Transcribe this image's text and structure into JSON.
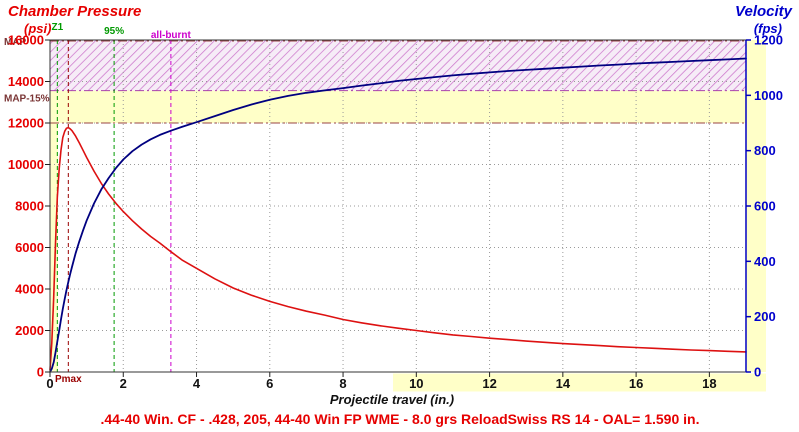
{
  "chart_data": {
    "type": "line",
    "caption": ".44-40 Win. CF - .428, 205, 44-40 Win FP WME - 8.0 grs ReloadSwiss RS 14 - OAL= 1.590 in.",
    "xlabel": "Projectile travel (in.)",
    "x_axis": {
      "min": 0,
      "max": 19,
      "ticks": [
        0,
        2,
        4,
        6,
        8,
        10,
        12,
        14,
        16,
        18
      ]
    },
    "pressure_axis": {
      "title": "Chamber Pressure",
      "unit": "(psi)",
      "min": 0,
      "max": 16000,
      "ticks": [
        0,
        2000,
        4000,
        6000,
        8000,
        10000,
        12000,
        14000,
        16000
      ],
      "color": "#e60000"
    },
    "velocity_axis": {
      "title": "Velocity",
      "unit": "(fps)",
      "min": 0,
      "max": 1200,
      "ticks": [
        0,
        200,
        400,
        600,
        800,
        1000,
        1200
      ],
      "color": "#0000cc"
    },
    "band_color": "#ffffc8",
    "grid": true,
    "zones": [
      {
        "name": "overpressure-hatched",
        "style": "hatched",
        "color": "#cc77cc",
        "from_psi": 13560,
        "to_psi": 16000
      },
      {
        "name": "map-warning-band",
        "style": "solid",
        "color": "#ffffc8",
        "from_psi": 12000,
        "to_psi": 13560
      }
    ],
    "hlines": [
      {
        "label": "MAP",
        "psi": 15954,
        "label_dy": 4,
        "line": true,
        "color": "#994444"
      },
      {
        "label": "MAP-15%",
        "psi": 13560,
        "label_dy": 11,
        "line": true,
        "color": "#aa44aa"
      },
      {
        "label": "",
        "psi": 12000,
        "label_dy": 0,
        "line": true,
        "color": "#994444"
      }
    ],
    "markers": [
      {
        "label": "Z1",
        "x": 0.2,
        "color": "#009900",
        "label_pos": "top",
        "label_row": 0
      },
      {
        "label": "Pmax",
        "x": 0.5,
        "color": "#990000",
        "label_pos": "bottom",
        "label_row": 0
      },
      {
        "label": "95%",
        "x": 1.75,
        "color": "#009900",
        "label_pos": "top",
        "label_row": 1
      },
      {
        "label": "all-burnt",
        "x": 3.3,
        "color": "#cc00cc",
        "label_pos": "top",
        "label_row": 2
      }
    ],
    "series": [
      {
        "name": "chamber-pressure",
        "axis": "pressure",
        "color": "#dd1111",
        "width": 1.6,
        "points": [
          [
            0,
            100
          ],
          [
            0.05,
            1400
          ],
          [
            0.1,
            3600
          ],
          [
            0.15,
            6200
          ],
          [
            0.2,
            8400
          ],
          [
            0.25,
            9800
          ],
          [
            0.3,
            10700
          ],
          [
            0.35,
            11300
          ],
          [
            0.4,
            11600
          ],
          [
            0.45,
            11750
          ],
          [
            0.5,
            11780
          ],
          [
            0.55,
            11720
          ],
          [
            0.6,
            11630
          ],
          [
            0.7,
            11370
          ],
          [
            0.8,
            11040
          ],
          [
            0.9,
            10690
          ],
          [
            1.0,
            10340
          ],
          [
            1.2,
            9680
          ],
          [
            1.4,
            9090
          ],
          [
            1.6,
            8580
          ],
          [
            1.8,
            8130
          ],
          [
            2.0,
            7730
          ],
          [
            2.25,
            7290
          ],
          [
            2.5,
            6890
          ],
          [
            2.75,
            6530
          ],
          [
            3.0,
            6210
          ],
          [
            3.3,
            5800
          ],
          [
            3.6,
            5400
          ],
          [
            4.0,
            5000
          ],
          [
            4.5,
            4490
          ],
          [
            5.0,
            4050
          ],
          [
            5.5,
            3700
          ],
          [
            6.0,
            3400
          ],
          [
            6.5,
            3150
          ],
          [
            7.0,
            2930
          ],
          [
            7.5,
            2740
          ],
          [
            8.0,
            2530
          ],
          [
            8.5,
            2370
          ],
          [
            9.0,
            2230
          ],
          [
            9.5,
            2110
          ],
          [
            10.0,
            2000
          ],
          [
            10.5,
            1890
          ],
          [
            11.0,
            1790
          ],
          [
            11.5,
            1710
          ],
          [
            12.0,
            1630
          ],
          [
            12.5,
            1560
          ],
          [
            13.0,
            1490
          ],
          [
            13.5,
            1430
          ],
          [
            14.0,
            1370
          ],
          [
            14.5,
            1320
          ],
          [
            15.0,
            1270
          ],
          [
            15.5,
            1220
          ],
          [
            16.0,
            1180
          ],
          [
            16.5,
            1140
          ],
          [
            17.0,
            1100
          ],
          [
            17.5,
            1060
          ],
          [
            18.0,
            1030
          ],
          [
            18.5,
            1000
          ],
          [
            19.0,
            970
          ]
        ]
      },
      {
        "name": "velocity",
        "axis": "velocity",
        "color": "#000080",
        "width": 1.8,
        "points": [
          [
            0,
            0
          ],
          [
            0.05,
            12
          ],
          [
            0.1,
            35
          ],
          [
            0.15,
            70
          ],
          [
            0.2,
            110
          ],
          [
            0.25,
            150
          ],
          [
            0.3,
            190
          ],
          [
            0.35,
            228
          ],
          [
            0.4,
            264
          ],
          [
            0.45,
            296
          ],
          [
            0.5,
            325
          ],
          [
            0.55,
            353
          ],
          [
            0.6,
            380
          ],
          [
            0.7,
            429
          ],
          [
            0.8,
            472
          ],
          [
            0.9,
            511
          ],
          [
            1.0,
            547
          ],
          [
            1.2,
            609
          ],
          [
            1.4,
            660
          ],
          [
            1.6,
            701
          ],
          [
            1.8,
            737
          ],
          [
            2.0,
            768
          ],
          [
            2.25,
            798
          ],
          [
            2.5,
            822
          ],
          [
            2.75,
            841
          ],
          [
            3.0,
            857
          ],
          [
            3.3,
            872
          ],
          [
            3.6,
            886
          ],
          [
            4.0,
            903
          ],
          [
            4.5,
            925
          ],
          [
            5.0,
            947
          ],
          [
            5.5,
            967
          ],
          [
            6.0,
            984
          ],
          [
            6.5,
            998
          ],
          [
            7.0,
            1009
          ],
          [
            7.5,
            1018
          ],
          [
            8.0,
            1026
          ],
          [
            8.5,
            1035
          ],
          [
            9.0,
            1043
          ],
          [
            9.5,
            1052
          ],
          [
            10.0,
            1059
          ],
          [
            10.5,
            1066
          ],
          [
            11.0,
            1072
          ],
          [
            11.5,
            1078
          ],
          [
            12.0,
            1083
          ],
          [
            12.5,
            1088
          ],
          [
            13.0,
            1092
          ],
          [
            13.5,
            1096
          ],
          [
            14.0,
            1100
          ],
          [
            14.5,
            1104
          ],
          [
            15.0,
            1108
          ],
          [
            15.5,
            1111
          ],
          [
            16.0,
            1115
          ],
          [
            16.5,
            1118
          ],
          [
            17.0,
            1121
          ],
          [
            17.5,
            1124
          ],
          [
            18.0,
            1127
          ],
          [
            18.5,
            1130
          ],
          [
            19.0,
            1133
          ]
        ]
      }
    ]
  }
}
